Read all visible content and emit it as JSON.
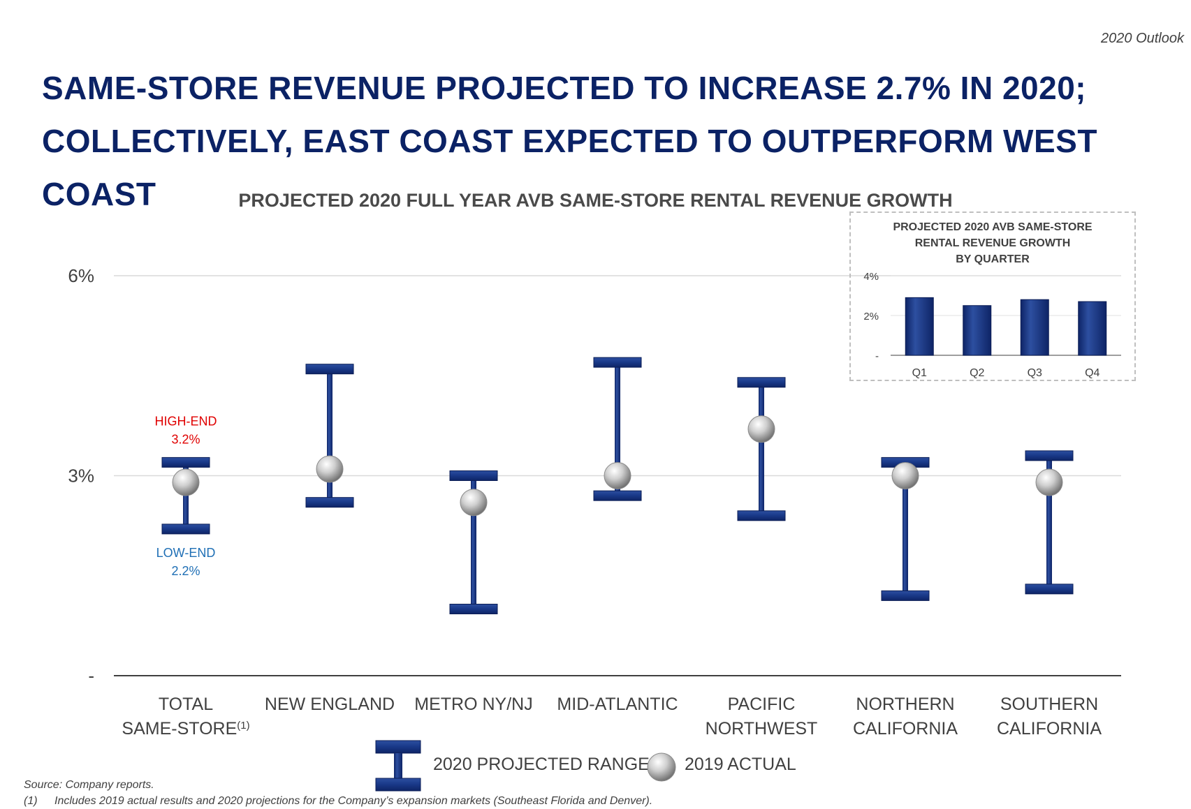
{
  "header": {
    "tag": "2020 Outlook",
    "headline_line1": "SAME-STORE REVENUE PROJECTED TO INCREASE 2.7% IN 2020;",
    "headline_line2": "COLLECTIVELY, EAST COAST EXPECTED TO OUTPERFORM WEST COAST"
  },
  "chart_data": [
    {
      "type": "range",
      "title": "PROJECTED 2020 FULL YEAR AVB SAME-STORE RENTAL REVENUE GROWTH",
      "y_ticks": [
        "6%",
        "3%",
        "-"
      ],
      "ylim": [
        0,
        6
      ],
      "grid": true,
      "categories": [
        [
          "TOTAL",
          "SAME-STORE"
        ],
        [
          "NEW ENGLAND"
        ],
        [
          "METRO NY/NJ"
        ],
        [
          "MID-ATLANTIC"
        ],
        [
          "PACIFIC",
          "NORTHWEST"
        ],
        [
          "NORTHERN",
          "CALIFORNIA"
        ],
        [
          "SOUTHERN",
          "CALIFORNIA"
        ]
      ],
      "first_category_superscript": "(1)",
      "series": [
        {
          "name": "2020 PROJECTED RANGE",
          "low": [
            2.2,
            2.6,
            1.0,
            2.7,
            2.4,
            1.2,
            1.3
          ],
          "high": [
            3.2,
            4.6,
            3.0,
            4.7,
            4.4,
            3.2,
            3.3
          ]
        },
        {
          "name": "2019 ACTUAL",
          "values": [
            2.9,
            3.1,
            2.6,
            3.0,
            3.7,
            3.0,
            2.9
          ]
        }
      ],
      "annotations": {
        "high_label": "HIGH-END",
        "high_value": "3.2%",
        "low_label": "LOW-END",
        "low_value": "2.2%"
      },
      "colors": {
        "range": "#1a3a8a",
        "actual": "#c8c8c8",
        "high": "#e00000",
        "low": "#1f6fb5"
      },
      "legend_position": "bottom"
    },
    {
      "type": "bar",
      "title": "PROJECTED 2020 AVB SAME-STORE\nRENTAL REVENUE GROWTH\nBY QUARTER",
      "categories": [
        "Q1",
        "Q2",
        "Q3",
        "Q4"
      ],
      "values": [
        2.9,
        2.5,
        2.8,
        2.7
      ],
      "y_ticks": [
        "4%",
        "2%",
        "-"
      ],
      "ylim": [
        0,
        4
      ],
      "grid": true,
      "color": "#1a3a8a"
    }
  ],
  "footnotes": {
    "source": "Source:  Company reports.",
    "note_number": "(1)",
    "note_text": "Includes 2019 actual results and 2020 projections for the Company’s expansion markets (Southeast Florida and Denver)."
  }
}
